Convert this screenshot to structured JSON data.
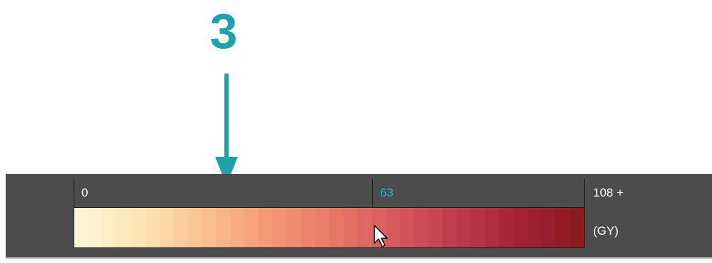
{
  "annotation": {
    "callout_number": "3",
    "accent_color": "#1fa3a8"
  },
  "legend": {
    "ticks": [
      {
        "label": "0",
        "accent": false
      },
      {
        "label": "63",
        "accent": true
      }
    ],
    "max_label": "108 +",
    "unit_label": "(GY)",
    "accent_tick_color": "#2fb2c8",
    "panel_color": "#4c4c4c",
    "gradient_stops": [
      "#fff7d6",
      "#fde3b2",
      "#fbc08f",
      "#f59a73",
      "#e87a68",
      "#d85c5e",
      "#c03d4c",
      "#a52336",
      "#8b1a1f"
    ]
  },
  "cursor": {
    "icon": "arrow-cursor-icon"
  }
}
